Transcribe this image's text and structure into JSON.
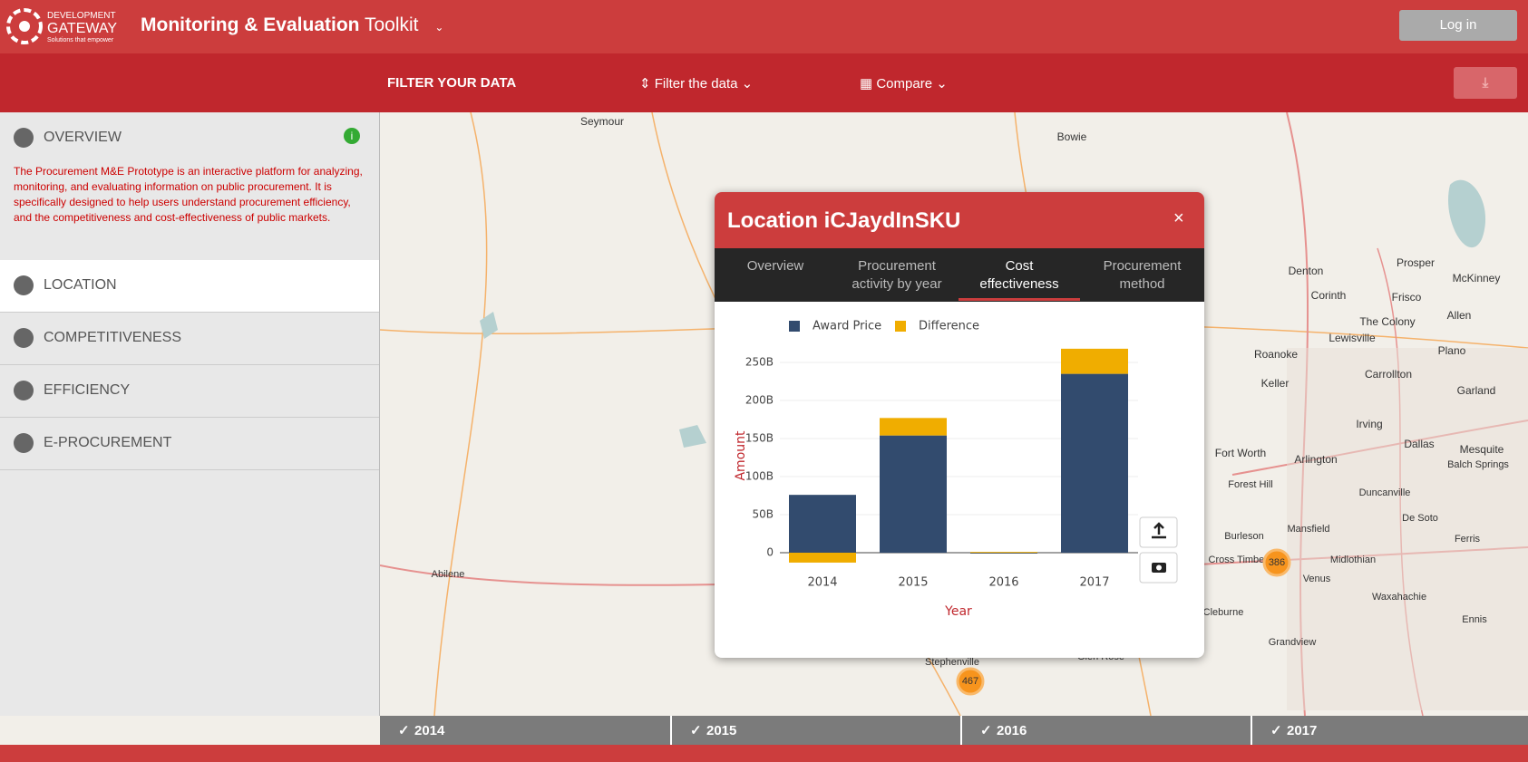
{
  "header": {
    "logo": [
      "DEVELOPMENT",
      "GATEWAY"
    ],
    "logo_tagline": "Solutions that empower",
    "title_bold": "Monitoring & Evaluation",
    "title_rest": "Toolkit",
    "login": "Log in"
  },
  "filter_bar": {
    "label": "FILTER YOUR DATA",
    "filter": "Filter the data",
    "compare": "Compare"
  },
  "sidebar": {
    "sections": [
      "OVERVIEW",
      "LOCATION",
      "COMPETITIVENESS",
      "EFFICIENCY",
      "E-PROCUREMENT"
    ],
    "description": "The Procurement M&E Prototype is an interactive platform for analyzing, monitoring, and evaluating information on public procurement. It is specifically designed to help users understand procurement efficiency, and the competitiveness and cost-effectiveness of public markets."
  },
  "map": {
    "labels": [
      "Seymour",
      "Bowie",
      "Denton",
      "Prosper",
      "McKinney",
      "Corinth",
      "Frisco",
      "The Colony",
      "Allen",
      "Lewisville",
      "Plano",
      "Roanoke",
      "Carrollton",
      "Keller",
      "Garland",
      "Irving",
      "Dallas",
      "Fort Worth",
      "Arlington",
      "Mesquite",
      "Balch Springs",
      "Forest Hill",
      "Duncanville",
      "De Soto",
      "Burleson",
      "Mansfield",
      "Ferris",
      "Cross Timbers",
      "Midlothian",
      "Venus",
      "Waxahachie",
      "Cleburne",
      "Ennis",
      "Grandview",
      "Glen Rose",
      "Stephenville",
      "Abilene"
    ],
    "clusters": [
      386,
      467
    ]
  },
  "timeline": [
    "2014",
    "2015",
    "2016",
    "2017"
  ],
  "popup": {
    "title": "Location iCJaydInSKU",
    "close": "×",
    "tabs": [
      "Overview",
      "Procurement activity by year",
      "Cost effectiveness",
      "Procurement method"
    ]
  },
  "chart_data": {
    "type": "bar",
    "stacked": true,
    "categories": [
      "2014",
      "2015",
      "2016",
      "2017"
    ],
    "series": [
      {
        "name": "Award Price",
        "color": "#324b6e",
        "values": [
          76,
          154,
          0,
          235
        ]
      },
      {
        "name": "Difference",
        "color": "#f0ad00",
        "values": [
          -13,
          23,
          1,
          33
        ]
      }
    ],
    "ylim": [
      -20,
      280
    ],
    "yticks": [
      0,
      {
        "value": 50,
        "label": "50B"
      },
      {
        "value": 100,
        "label": "100B"
      },
      {
        "value": 150,
        "label": "150B"
      },
      {
        "value": 200,
        "label": "200B"
      },
      {
        "value": 250,
        "label": "250B"
      }
    ],
    "grid": true,
    "legend": "top",
    "xlabel": "Year",
    "ylabel": "Amount"
  }
}
